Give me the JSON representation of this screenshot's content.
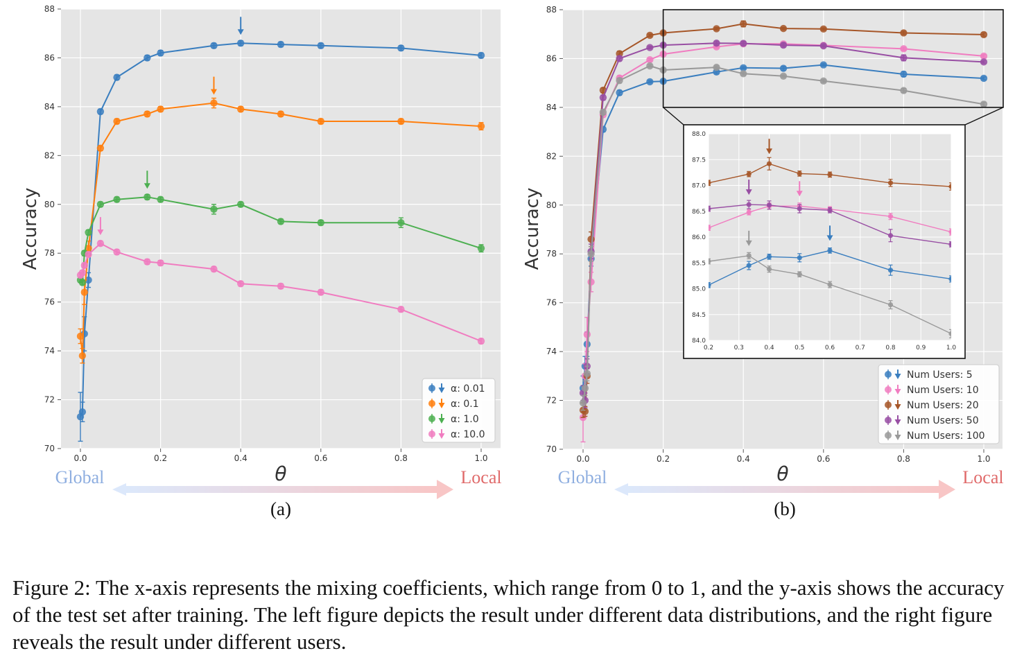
{
  "chart_data": [
    {
      "type": "line",
      "panel_label": "(a)",
      "xlabel": "θ",
      "ylabel": "Accuracy",
      "xlim": [
        0.0,
        1.0
      ],
      "ylim": [
        70,
        88
      ],
      "xticks": [
        "0.0",
        "0.2",
        "0.4",
        "0.6",
        "0.8",
        "1.0"
      ],
      "yticks": [
        "70",
        "72",
        "74",
        "76",
        "78",
        "80",
        "82",
        "84",
        "86",
        "88"
      ],
      "grid": true,
      "legend_position": "bottom-right",
      "direction_labels": {
        "left": "Global",
        "right": "Local"
      },
      "series": [
        {
          "name": "α: 0.01",
          "color": "#3a7ebf",
          "x": [
            0,
            0.005,
            0.01,
            0.02,
            0.05,
            0.0909,
            0.1667,
            0.2,
            0.333,
            0.4,
            0.5,
            0.6,
            0.8,
            1.0
          ],
          "y": [
            71.3,
            71.5,
            74.7,
            76.9,
            83.8,
            85.2,
            86.0,
            86.2,
            86.5,
            86.6,
            86.55,
            86.5,
            86.4,
            86.1
          ],
          "err": [
            1.0,
            0.4,
            0.7,
            0.3,
            0.1,
            0.1,
            0.1,
            0.1,
            0.1,
            0.1,
            0.1,
            0.1,
            0.1,
            0.1
          ],
          "best_x": 0.4
        },
        {
          "name": "α: 0.1",
          "color": "#ff7f0e",
          "x": [
            0,
            0.005,
            0.01,
            0.02,
            0.05,
            0.0909,
            0.1667,
            0.2,
            0.333,
            0.4,
            0.5,
            0.6,
            0.8,
            1.0
          ],
          "y": [
            74.6,
            73.8,
            76.4,
            78.2,
            82.3,
            83.4,
            83.7,
            83.9,
            84.15,
            83.9,
            83.7,
            83.4,
            83.4,
            83.2
          ],
          "err": [
            0.3,
            0.3,
            0.5,
            0.3,
            0.1,
            0.1,
            0.1,
            0.1,
            0.2,
            0.1,
            0.1,
            0.1,
            0.1,
            0.15
          ],
          "best_x": 0.333
        },
        {
          "name": "α: 1.0",
          "color": "#4caf50",
          "x": [
            0,
            0.005,
            0.01,
            0.02,
            0.05,
            0.0909,
            0.1667,
            0.2,
            0.333,
            0.4,
            0.5,
            0.6,
            0.8,
            1.0
          ],
          "y": [
            76.9,
            76.8,
            78.0,
            78.85,
            80.0,
            80.2,
            80.3,
            80.2,
            79.8,
            80.0,
            79.3,
            79.25,
            79.25,
            78.2
          ],
          "err": [
            0.1,
            0.1,
            0.1,
            0.1,
            0.1,
            0.1,
            0.1,
            0.1,
            0.2,
            0.1,
            0.1,
            0.1,
            0.2,
            0.15
          ],
          "best_x": 0.1667
        },
        {
          "name": "α: 10.0",
          "color": "#f07cc0",
          "x": [
            0,
            0.005,
            0.01,
            0.02,
            0.05,
            0.0909,
            0.1667,
            0.2,
            0.333,
            0.4,
            0.5,
            0.6,
            0.8,
            1.0
          ],
          "y": [
            77.1,
            77.2,
            77.5,
            77.95,
            78.4,
            78.05,
            77.65,
            77.6,
            77.35,
            76.75,
            76.65,
            76.4,
            75.7,
            74.4
          ],
          "err": [
            0.1,
            0.1,
            0.1,
            0.1,
            0.1,
            0.1,
            0.1,
            0.1,
            0.1,
            0.1,
            0.1,
            0.1,
            0.1,
            0.1
          ],
          "best_x": 0.05
        }
      ]
    },
    {
      "type": "line",
      "panel_label": "(b)",
      "xlabel": "θ",
      "ylabel": "Accuracy",
      "xlim": [
        0.0,
        1.0
      ],
      "ylim": [
        70,
        88
      ],
      "xticks": [
        "0.0",
        "0.2",
        "0.4",
        "0.6",
        "0.8",
        "1.0"
      ],
      "yticks": [
        "70",
        "72",
        "74",
        "76",
        "78",
        "80",
        "82",
        "84",
        "86",
        "88"
      ],
      "grid": true,
      "legend_position": "bottom-right",
      "direction_labels": {
        "left": "Global",
        "right": "Local"
      },
      "inset": {
        "xlim": [
          0.2,
          1.0
        ],
        "ylim": [
          84.0,
          88.0
        ],
        "xticks": [
          "0.2",
          "0.3",
          "0.4",
          "0.5",
          "0.6",
          "0.7",
          "0.8",
          "0.9",
          "1.0"
        ],
        "yticks": [
          "84.0",
          "84.5",
          "85.0",
          "85.5",
          "86.0",
          "86.5",
          "87.0",
          "87.5",
          "88.0"
        ],
        "zoom_region": {
          "x": [
            0.2,
            1.0
          ],
          "y": [
            84.0,
            88.0
          ]
        }
      },
      "series": [
        {
          "name": "Num Users: 5",
          "color": "#3a7ebf",
          "x": [
            0,
            0.005,
            0.01,
            0.02,
            0.05,
            0.0909,
            0.1667,
            0.2,
            0.333,
            0.4,
            0.5,
            0.6,
            0.8,
            1.0
          ],
          "y": [
            72.5,
            73.4,
            74.3,
            77.8,
            83.1,
            84.6,
            85.05,
            85.07,
            85.45,
            85.62,
            85.6,
            85.74,
            85.36,
            85.19
          ],
          "err": [
            0.5,
            0.4,
            0.5,
            0.3,
            0.1,
            0.1,
            0.05,
            0.05,
            0.08,
            0.05,
            0.08,
            0.05,
            0.1,
            0.06
          ],
          "best_x": 0.6
        },
        {
          "name": "Num Users: 10",
          "color": "#f07cc0",
          "x": [
            0,
            0.005,
            0.01,
            0.02,
            0.05,
            0.0909,
            0.1667,
            0.2,
            0.333,
            0.4,
            0.5,
            0.6,
            0.8,
            1.0
          ],
          "y": [
            71.3,
            73.0,
            74.7,
            76.85,
            83.7,
            85.2,
            85.95,
            86.18,
            86.48,
            86.6,
            86.6,
            86.54,
            86.4,
            86.1
          ],
          "err": [
            1.0,
            0.5,
            0.7,
            0.4,
            0.1,
            0.1,
            0.05,
            0.05,
            0.05,
            0.06,
            0.06,
            0.05,
            0.06,
            0.06
          ],
          "best_x": 0.5
        },
        {
          "name": "Num Users: 20",
          "color": "#a65628",
          "x": [
            0,
            0.005,
            0.01,
            0.02,
            0.05,
            0.0909,
            0.1667,
            0.2,
            0.333,
            0.4,
            0.5,
            0.6,
            0.8,
            1.0
          ],
          "y": [
            71.6,
            71.55,
            73.0,
            78.6,
            84.7,
            86.2,
            86.95,
            87.05,
            87.22,
            87.42,
            87.23,
            87.21,
            87.05,
            86.98
          ],
          "err": [
            0.3,
            0.2,
            0.3,
            0.3,
            0.1,
            0.1,
            0.05,
            0.05,
            0.05,
            0.12,
            0.05,
            0.05,
            0.07,
            0.07
          ],
          "best_x": 0.4
        },
        {
          "name": "Num Users: 50",
          "color": "#984ea3",
          "x": [
            0,
            0.005,
            0.01,
            0.02,
            0.05,
            0.0909,
            0.1667,
            0.2,
            0.333,
            0.4,
            0.5,
            0.6,
            0.8,
            1.0
          ],
          "y": [
            72.3,
            72.0,
            73.4,
            78.1,
            84.4,
            86.0,
            86.45,
            86.55,
            86.63,
            86.62,
            86.55,
            86.52,
            86.03,
            85.86
          ],
          "err": [
            0.3,
            0.3,
            0.3,
            0.3,
            0.1,
            0.1,
            0.05,
            0.05,
            0.08,
            0.08,
            0.08,
            0.05,
            0.12,
            0.05
          ],
          "best_x": 0.333
        },
        {
          "name": "Num Users: 100",
          "color": "#999999",
          "x": [
            0,
            0.005,
            0.01,
            0.02,
            0.05,
            0.0909,
            0.1667,
            0.2,
            0.333,
            0.4,
            0.5,
            0.6,
            0.8,
            1.0
          ],
          "y": [
            71.9,
            72.5,
            73.1,
            78.0,
            83.8,
            85.1,
            85.7,
            85.53,
            85.64,
            85.38,
            85.28,
            85.08,
            84.69,
            84.13
          ],
          "err": [
            0.3,
            0.3,
            0.3,
            0.3,
            0.1,
            0.1,
            0.05,
            0.05,
            0.06,
            0.06,
            0.05,
            0.06,
            0.08,
            0.08
          ],
          "best_x": 0.333
        }
      ]
    }
  ],
  "caption": "Figure 2: The x-axis represents the mixing coefficients, which range from 0 to 1, and the y-axis shows the accuracy of the test set after training. The left figure depicts the result under different data distributions, and the right figure reveals the result under different users."
}
